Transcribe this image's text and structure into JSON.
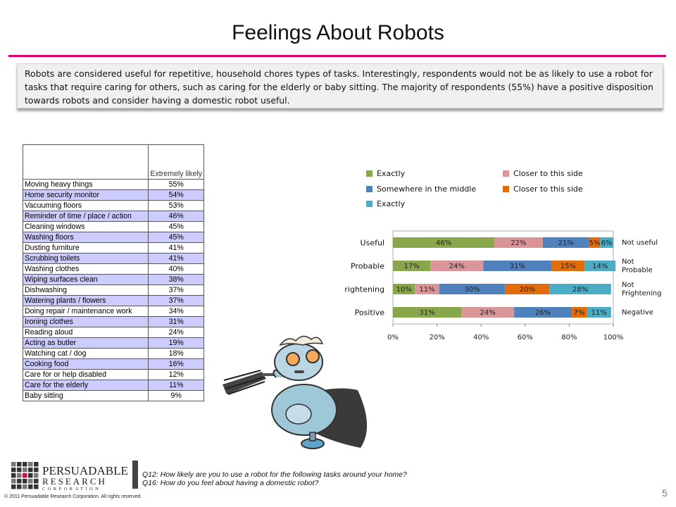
{
  "page": {
    "title": "Feelings About Robots",
    "summary": "Robots are considered useful for repetitive, household chores types of tasks.  Interestingly, respondents would not be as likely to use  a robot for tasks that require caring for others, such as caring for the elderly or baby sitting.   The majority of respondents (55%) have a positive disposition towards robots and consider having a domestic robot useful.",
    "page_number": "5",
    "questions": [
      "Q12: How likely are you to use a robot for the following tasks around your home?",
      "Q16:  How do you feel about having a domestic robot?"
    ],
    "copyright": "© 2011 Persuadable  Research Corporation.   All rights reserved.",
    "logo": {
      "line1": "PERSUADABLE",
      "line2": "RESEARCH",
      "line3": "CORPORATION"
    }
  },
  "colors": {
    "accent_rule": "#e0006e",
    "exactly_left": "#8aa64a",
    "closer_left": "#d99597",
    "middle": "#4f81bd",
    "closer_right": "#e36c0a",
    "exactly_right": "#4bacc6",
    "table_stripe": "#ccccff"
  },
  "chart_data": [
    {
      "type": "table",
      "columns": [
        "",
        "Extremely likely"
      ],
      "rows": [
        [
          "Moving heavy things",
          "55%"
        ],
        [
          "Home security monitor",
          "54%"
        ],
        [
          "Vacuuming floors",
          "53%"
        ],
        [
          "Reminder of time / place / action",
          "46%"
        ],
        [
          "Cleaning windows",
          "45%"
        ],
        [
          "Washing floors",
          "45%"
        ],
        [
          "Dusting furniture",
          "41%"
        ],
        [
          "Scrubbing toilets",
          "41%"
        ],
        [
          "Washing clothes",
          "40%"
        ],
        [
          "Wiping surfaces clean",
          "38%"
        ],
        [
          "Dishwashing",
          "37%"
        ],
        [
          "Watering plants / flowers",
          "37%"
        ],
        [
          "Doing repair / maintenance work",
          "34%"
        ],
        [
          "Ironing clothes",
          "31%"
        ],
        [
          "Reading aloud",
          "24%"
        ],
        [
          "Acting as butler",
          "19%"
        ],
        [
          "Watching cat / dog",
          "18%"
        ],
        [
          "Cooking food",
          "16%"
        ],
        [
          "Care for or help disabled",
          "12%"
        ],
        [
          "Care for the elderly",
          "11%"
        ],
        [
          "Baby sitting",
          "9%"
        ]
      ]
    },
    {
      "type": "bar",
      "orientation": "horizontal",
      "stacked": "100%",
      "categories": [
        "Useful",
        "Probable",
        "Frightening",
        "Positive"
      ],
      "right_labels": [
        "Not useful",
        "Not Probable",
        "Not Frightening",
        "Negative"
      ],
      "series": [
        {
          "name": "Exactly",
          "color": "#8aa64a",
          "values": [
            46,
            17,
            10,
            31
          ]
        },
        {
          "name": "Closer to this side",
          "color": "#d99597",
          "values": [
            22,
            24,
            11,
            24
          ]
        },
        {
          "name": "Somewhere in the middle",
          "color": "#4f81bd",
          "values": [
            21,
            31,
            30,
            26
          ]
        },
        {
          "name": "Closer to this side",
          "color": "#e36c0a",
          "values": [
            5,
            15,
            20,
            7
          ]
        },
        {
          "name": "Exactly",
          "color": "#4bacc6",
          "values": [
            6,
            14,
            28,
            11
          ]
        }
      ],
      "xlim": [
        0,
        100
      ],
      "xticks": [
        "0%",
        "20%",
        "40%",
        "60%",
        "80%",
        "100%"
      ],
      "legend_position": "top",
      "grid": false
    }
  ]
}
